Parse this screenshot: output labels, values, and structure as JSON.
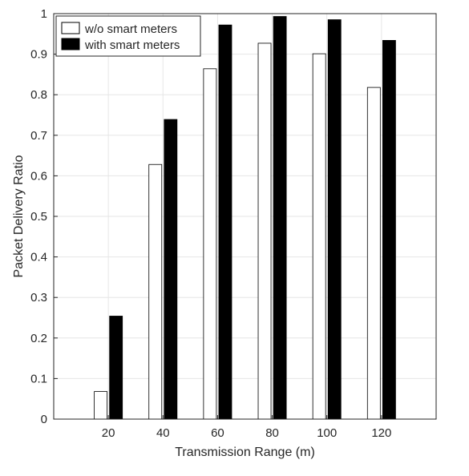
{
  "chart_data": {
    "type": "bar",
    "title": "",
    "xlabel": "Transmission Range (m)",
    "ylabel": "Packet Delivery Ratio",
    "categories": [
      "20",
      "40",
      "60",
      "80",
      "100",
      "120"
    ],
    "x_values": [
      20,
      40,
      60,
      80,
      100,
      120
    ],
    "xlim": [
      0,
      140
    ],
    "ylim": [
      0,
      1
    ],
    "yticks": [
      "0",
      "0.1",
      "0.2",
      "0.3",
      "0.4",
      "0.5",
      "0.6",
      "0.7",
      "0.8",
      "0.9",
      "1"
    ],
    "ytick_values": [
      0,
      0.1,
      0.2,
      0.3,
      0.4,
      0.5,
      0.6,
      0.7,
      0.8,
      0.9,
      1
    ],
    "grid": true,
    "legend_position": "top-left",
    "series": [
      {
        "name": "w/o smart meters",
        "color": "#ffffff",
        "values": [
          0.068,
          0.628,
          0.864,
          0.927,
          0.901,
          0.818
        ]
      },
      {
        "name": "with smart meters",
        "color": "#000000",
        "values": [
          0.254,
          0.739,
          0.972,
          0.993,
          0.985,
          0.934
        ]
      }
    ]
  }
}
